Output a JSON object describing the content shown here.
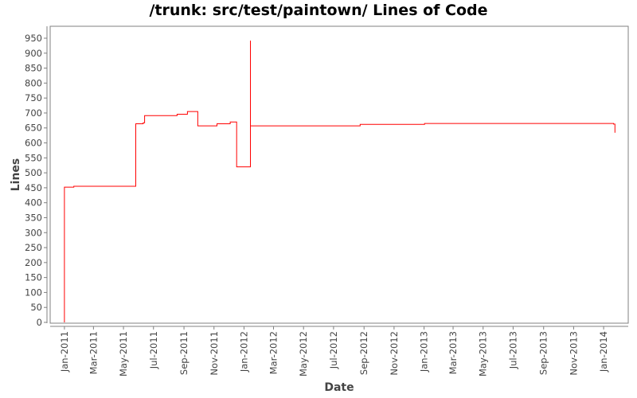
{
  "chart_data": {
    "type": "line",
    "step": true,
    "title": "/trunk: src/test/paintown/ Lines of Code",
    "xlabel": "Date",
    "ylabel": "Lines",
    "ylim": [
      0,
      950
    ],
    "yticks": [
      0,
      50,
      100,
      150,
      200,
      250,
      300,
      350,
      400,
      450,
      500,
      550,
      600,
      650,
      700,
      750,
      800,
      850,
      900,
      950
    ],
    "xticks": [
      "Jan-2011",
      "Mar-2011",
      "May-2011",
      "Jul-2011",
      "Sep-2011",
      "Nov-2011",
      "Jan-2012",
      "Mar-2012",
      "May-2012",
      "Jul-2012",
      "Sep-2012",
      "Nov-2012",
      "Jan-2013",
      "Mar-2013",
      "May-2013",
      "Jul-2013",
      "Sep-2013",
      "Nov-2013",
      "Jan-2014"
    ],
    "xtick_dates": [
      "2011-01-01",
      "2011-03-01",
      "2011-05-01",
      "2011-07-01",
      "2011-09-01",
      "2011-11-01",
      "2012-01-01",
      "2012-03-01",
      "2012-05-01",
      "2012-07-01",
      "2012-09-01",
      "2012-11-01",
      "2013-01-01",
      "2013-03-01",
      "2013-05-01",
      "2013-07-01",
      "2013-09-01",
      "2013-11-01",
      "2014-01-01"
    ],
    "xlim": [
      "2010-12-03",
      "2014-02-20"
    ],
    "grid": false,
    "colors": {
      "line": "#ff0000",
      "axis": "#808080"
    },
    "series": [
      {
        "points": [
          [
            "2011-01-01",
            0
          ],
          [
            "2011-01-01",
            452
          ],
          [
            "2011-01-20",
            455
          ],
          [
            "2011-05-26",
            664
          ],
          [
            "2011-06-10",
            667
          ],
          [
            "2011-06-13",
            691
          ],
          [
            "2011-08-18",
            696
          ],
          [
            "2011-09-08",
            705
          ],
          [
            "2011-09-29",
            657
          ],
          [
            "2011-11-07",
            664
          ],
          [
            "2011-12-04",
            670
          ],
          [
            "2011-12-17",
            520
          ],
          [
            "2012-01-14",
            942
          ],
          [
            "2012-01-14",
            657
          ],
          [
            "2012-08-24",
            662
          ],
          [
            "2013-01-02",
            665
          ],
          [
            "2014-01-21",
            663
          ],
          [
            "2014-01-24",
            634
          ],
          [
            "2014-01-24",
            634
          ]
        ]
      }
    ]
  }
}
